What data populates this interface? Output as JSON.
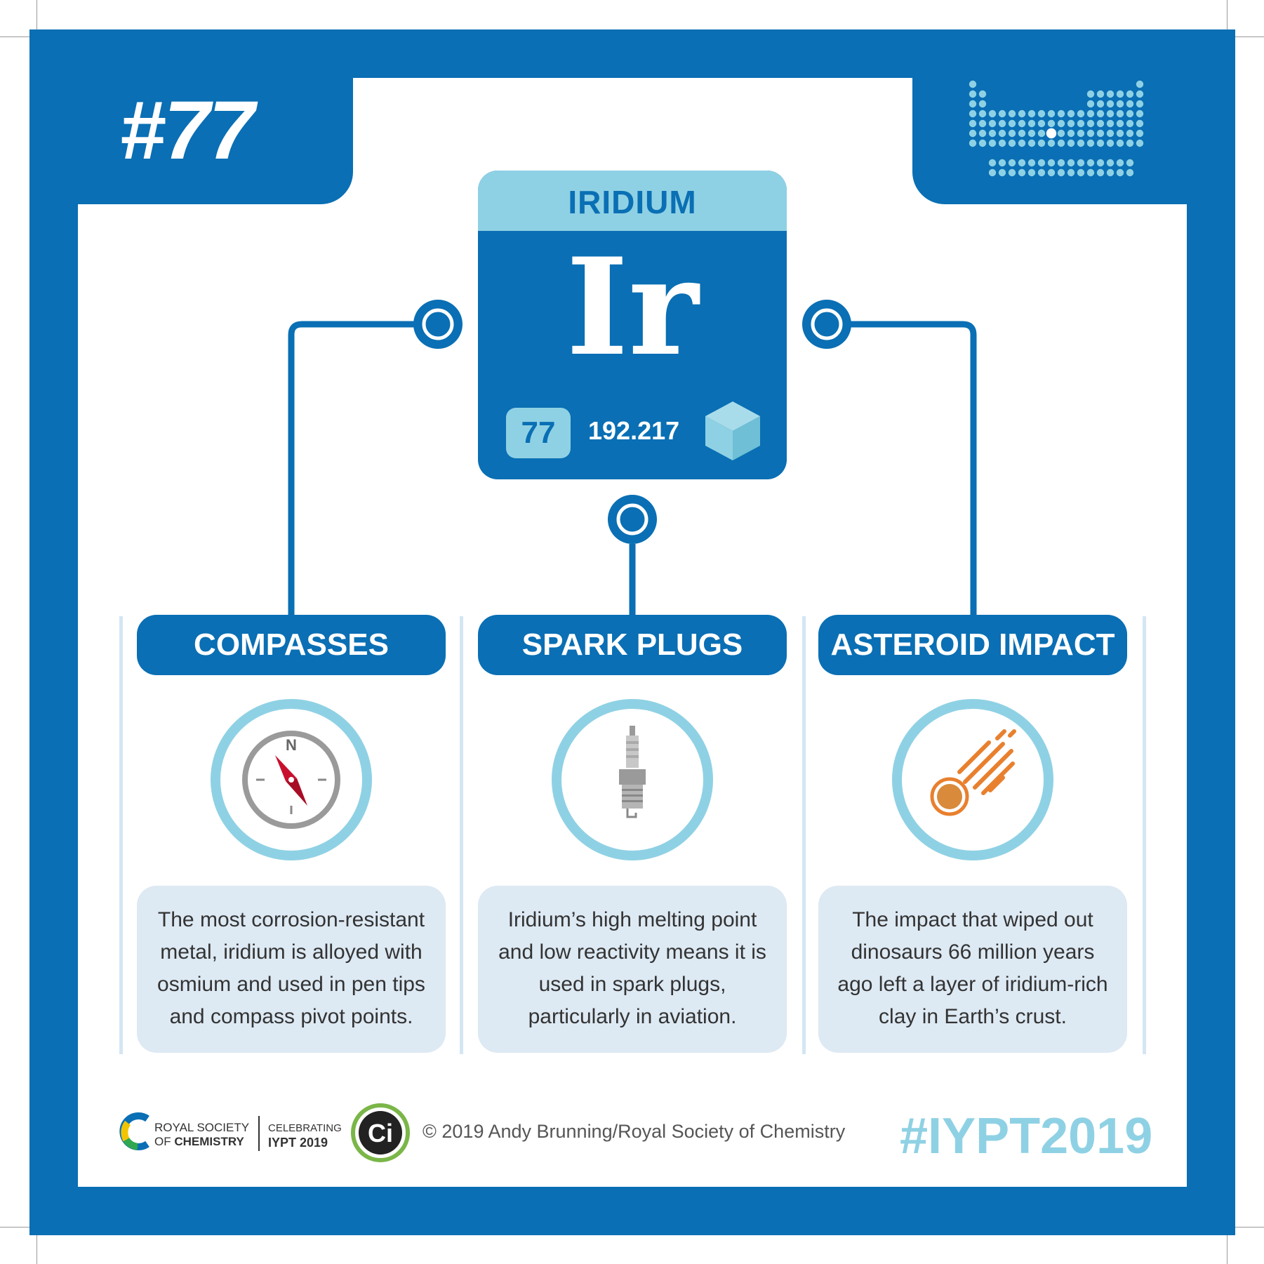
{
  "card": {
    "number": "#77",
    "hashtag": "#IYPT2019",
    "copyright": "© 2019 Andy Brunning/Royal Society of Chemistry"
  },
  "element": {
    "name": "IRIDIUM",
    "symbol": "Ir",
    "atomic_number": "77",
    "atomic_mass": "192.217"
  },
  "uses": [
    {
      "title": "COMPASSES",
      "icon": "compass-icon",
      "description": "The most corrosion-resistant metal, iridium is alloyed with osmium and used in pen tips and compass pivot points."
    },
    {
      "title": "SPARK PLUGS",
      "icon": "spark-plug-icon",
      "description": "Iridium’s high melting point and low reactivity means it is used in spark plugs, particularly in aviation."
    },
    {
      "title": "ASTEROID IMPACT",
      "icon": "asteroid-icon",
      "description": "The impact that wiped out dinosaurs 66 million years ago left a layer of iridium-rich clay in Earth’s crust."
    }
  ],
  "footer": {
    "rsc_line1": "ROYAL SOCIETY",
    "rsc_line2_prefix": "OF ",
    "rsc_line2_bold": "CHEMISTRY",
    "celebrating_line1": "CELEBRATING",
    "celebrating_line2": "IYPT 2019",
    "ci_logo_text": "Ci"
  },
  "colors": {
    "primary_blue": "#0a6fb4",
    "light_blue": "#8fd1e4",
    "pale_blue": "#dde9f3",
    "compass_needle": "#c8102e",
    "asteroid_orange": "#e8802e"
  }
}
